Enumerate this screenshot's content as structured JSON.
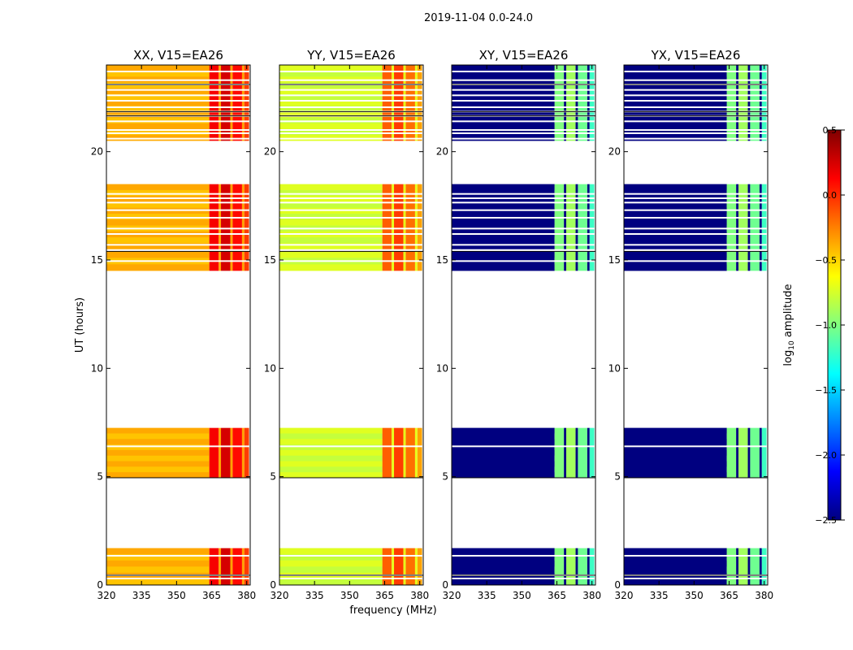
{
  "figure": {
    "suptitle": "2019-11-04 0.0-24.0",
    "xlabel": "frequency (MHz)",
    "ylabel": "UT (hours)"
  },
  "colorbar": {
    "label_prefix": "log",
    "label_sub": "10",
    "label_suffix": " amplitude",
    "range": [
      -2.5,
      0.5
    ],
    "ticks": [
      -2.5,
      -2.0,
      -1.5,
      -1.0,
      -0.5,
      0.0,
      0.5
    ],
    "tick_labels": [
      "−2.5",
      "−2.0",
      "−1.5",
      "−1.0",
      "−0.5",
      "0.0",
      "0.5"
    ],
    "colormap": "jet",
    "colormap_stops": [
      "#000080",
      "#0000ff",
      "#0080ff",
      "#00ffff",
      "#80ff80",
      "#ffff00",
      "#ff8000",
      "#ff0000",
      "#800000"
    ]
  },
  "chart_data": {
    "type": "heatmap",
    "x_range_mhz": [
      320,
      381.5
    ],
    "y_range_hours": [
      0,
      24
    ],
    "x_ticks": [
      320,
      335,
      350,
      365,
      380
    ],
    "x_tick_labels": [
      "320",
      "335",
      "350",
      "365",
      "380"
    ],
    "y_ticks": [
      0,
      5,
      10,
      15,
      20
    ],
    "y_tick_labels": [
      "0",
      "5",
      "10",
      "15",
      "20"
    ],
    "band_start_mhz": 364,
    "band_channel_edges_mhz": [
      364,
      368,
      369,
      373,
      374,
      378,
      379,
      381
    ],
    "data_segments_hours": [
      {
        "start": 0.0,
        "end": 1.7
      },
      {
        "start": 4.95,
        "end": 7.25
      },
      {
        "start": 14.5,
        "end": 15.4
      },
      {
        "start": 15.5,
        "end": 18.5
      },
      {
        "start": 20.5,
        "end": 24.0
      }
    ],
    "row_gaps_hours": [
      0.3,
      0.45,
      1.35,
      6.4,
      14.95,
      15.7,
      16.2,
      16.45,
      16.95,
      17.3,
      17.65,
      17.85,
      18.05,
      20.6,
      20.85,
      21.0,
      21.4,
      21.65,
      21.85,
      22.05,
      22.35,
      22.6,
      22.85,
      23.1,
      23.3,
      23.7
    ],
    "panels": [
      {
        "title": "XX, V15=EA26",
        "kind": "parallel",
        "base_value": -0.45,
        "band_value": 0.05
      },
      {
        "title": "YY, V15=EA26",
        "kind": "parallel",
        "base_value": -0.8,
        "band_value": -0.25
      },
      {
        "title": "XY, V15=EA26",
        "kind": "cross",
        "base_value": -2.5,
        "band_value": -1.1
      },
      {
        "title": "YX, V15=EA26",
        "kind": "cross",
        "base_value": -2.5,
        "band_value": -1.1
      }
    ]
  }
}
